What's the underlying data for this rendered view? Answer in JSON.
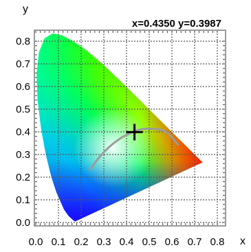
{
  "readout": {
    "text": "x=0.4350 y=0.3987"
  },
  "chart_data": {
    "type": "scatter",
    "title": "",
    "xlabel": "x",
    "ylabel": "y",
    "xlim": [
      0,
      0.8
    ],
    "ylim": [
      0,
      0.85
    ],
    "x_ticks": [
      "0.0",
      "0.1",
      "0.2",
      "0.3",
      "0.4",
      "0.5",
      "0.6",
      "0.7",
      "0.8"
    ],
    "y_ticks": [
      "0.0",
      "0.1",
      "0.2",
      "0.3",
      "0.4",
      "0.5",
      "0.6",
      "0.7",
      "0.8"
    ],
    "grid": true,
    "legend": "none",
    "cursor": {
      "x": 0.435,
      "y": 0.3987
    },
    "spectral_locus": [
      [
        0.1741,
        0.005
      ],
      [
        0.1738,
        0.0049
      ],
      [
        0.173,
        0.0048
      ],
      [
        0.1666,
        0.0089
      ],
      [
        0.144,
        0.0297
      ],
      [
        0.1241,
        0.0578
      ],
      [
        0.0913,
        0.1327
      ],
      [
        0.0687,
        0.2007
      ],
      [
        0.0454,
        0.295
      ],
      [
        0.0235,
        0.4127
      ],
      [
        0.0082,
        0.5384
      ],
      [
        0.0039,
        0.6548
      ],
      [
        0.0139,
        0.7502
      ],
      [
        0.0389,
        0.812
      ],
      [
        0.0743,
        0.8338
      ],
      [
        0.1142,
        0.8262
      ],
      [
        0.1547,
        0.8059
      ],
      [
        0.1929,
        0.7816
      ],
      [
        0.2296,
        0.7543
      ],
      [
        0.2658,
        0.7243
      ],
      [
        0.3016,
        0.6923
      ],
      [
        0.3373,
        0.6589
      ],
      [
        0.3731,
        0.6245
      ],
      [
        0.4087,
        0.5896
      ],
      [
        0.4441,
        0.5547
      ],
      [
        0.4788,
        0.5202
      ],
      [
        0.5125,
        0.4866
      ],
      [
        0.5448,
        0.4544
      ],
      [
        0.5752,
        0.4242
      ],
      [
        0.6029,
        0.3965
      ],
      [
        0.627,
        0.3725
      ],
      [
        0.6482,
        0.3514
      ],
      [
        0.6658,
        0.334
      ],
      [
        0.6801,
        0.3197
      ],
      [
        0.6915,
        0.3083
      ],
      [
        0.7006,
        0.2993
      ],
      [
        0.7079,
        0.292
      ],
      [
        0.714,
        0.2859
      ],
      [
        0.719,
        0.2809
      ],
      [
        0.723,
        0.277
      ],
      [
        0.726,
        0.274
      ],
      [
        0.7283,
        0.2717
      ],
      [
        0.73,
        0.27
      ],
      [
        0.7347,
        0.2653
      ]
    ],
    "planckian_locus": [
      [
        0.6268,
        0.3439
      ],
      [
        0.6079,
        0.3663
      ],
      [
        0.5857,
        0.393
      ],
      [
        0.556,
        0.408
      ],
      [
        0.5267,
        0.4133
      ],
      [
        0.477,
        0.4137
      ],
      [
        0.4369,
        0.4041
      ],
      [
        0.3805,
        0.3768
      ],
      [
        0.3451,
        0.3516
      ],
      [
        0.3221,
        0.3318
      ],
      [
        0.3064,
        0.3166
      ],
      [
        0.2952,
        0.3048
      ],
      [
        0.2807,
        0.2883
      ],
      [
        0.2637,
        0.2675
      ],
      [
        0.253,
        0.2524
      ],
      [
        0.24,
        0.234
      ]
    ]
  }
}
